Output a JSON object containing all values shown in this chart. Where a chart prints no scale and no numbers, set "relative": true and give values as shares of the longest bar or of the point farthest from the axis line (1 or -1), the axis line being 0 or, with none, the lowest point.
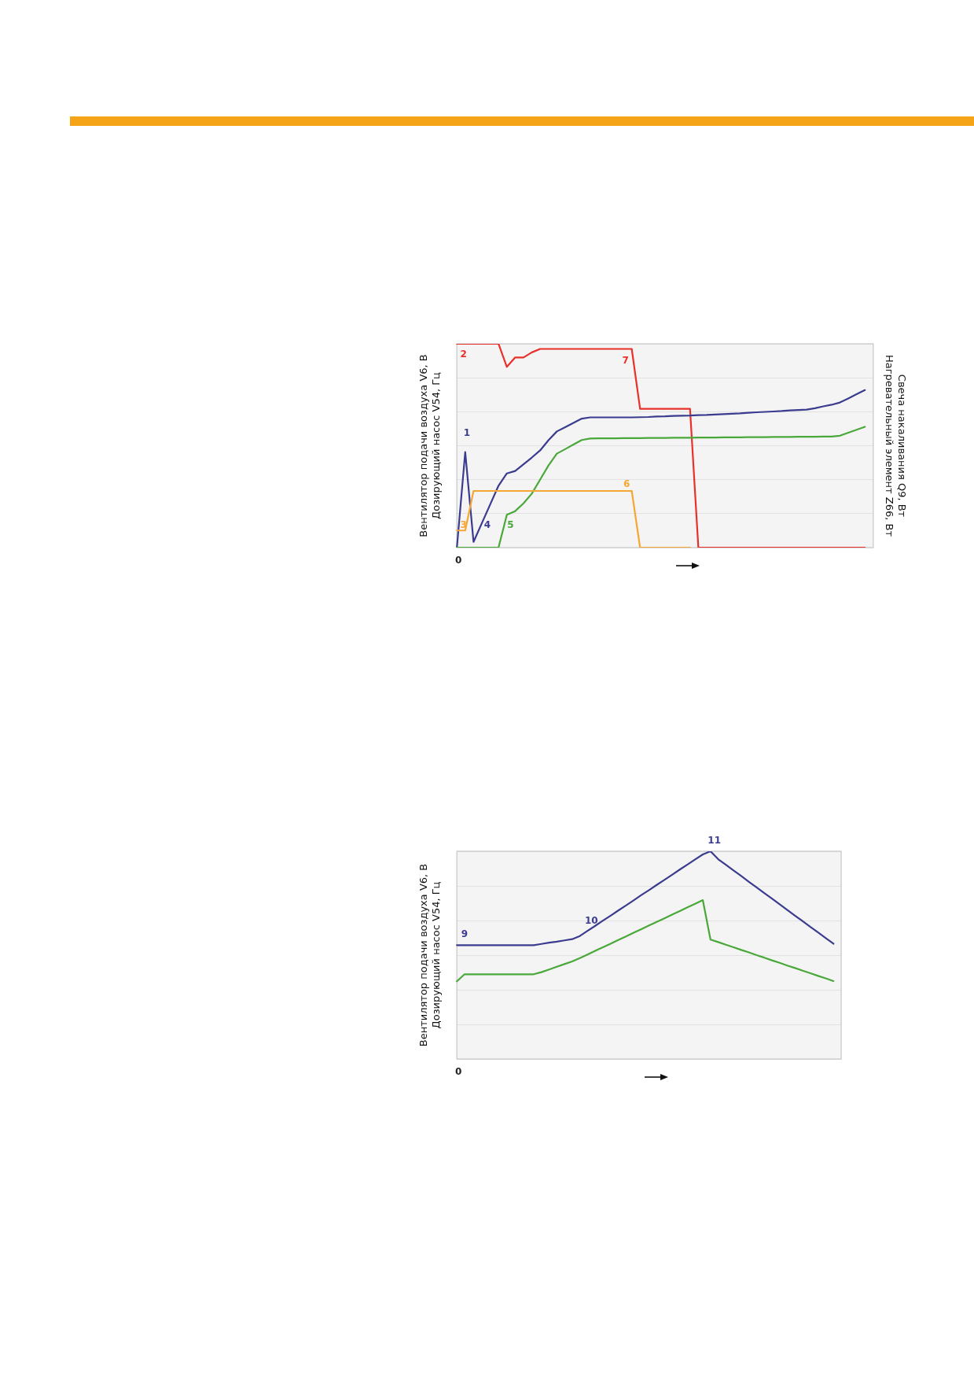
{
  "chart_data": [
    {
      "type": "line",
      "relative": true,
      "ylabel": "Вентилятор подачи воздуха V6, В\nДозирующий насос V54, Гц",
      "y2label": "Свеча накаливания Q9, Вт\nНагревательный элемент Z66, Вт",
      "grid": "y",
      "marker": "none",
      "categories": [
        null,
        null,
        null,
        null,
        null,
        null,
        null,
        null,
        null,
        null,
        null,
        null,
        null,
        null,
        null,
        null,
        null,
        null,
        null,
        null,
        null,
        null,
        null,
        null,
        null,
        null,
        null,
        null,
        null,
        null,
        null,
        null,
        null,
        null,
        null,
        null,
        null,
        null,
        null,
        null,
        null,
        null,
        null,
        null,
        null,
        null,
        null,
        null,
        null,
        null,
        null
      ],
      "series": [
        {
          "color": "#f5a733",
          "values": [
            0.084,
            0.084,
            0.278,
            0.278,
            0.278,
            0.278,
            0.278,
            0.278,
            0.278,
            0.278,
            0.278,
            0.278,
            0.278,
            0.278,
            0.278,
            0.278,
            0.278,
            0.278,
            0.278,
            0.278,
            0.278,
            0.278,
            0,
            0,
            0,
            0,
            0,
            0,
            0,
            null,
            null,
            null,
            null,
            null,
            null,
            null,
            null,
            null,
            null,
            null,
            null,
            null,
            null,
            null,
            null,
            null,
            null,
            null,
            null,
            null,
            null
          ]
        },
        {
          "color": "#4aa83a",
          "values": [
            0,
            0,
            0,
            0,
            0,
            0,
            0.161,
            0.179,
            0.217,
            0.265,
            0.334,
            0.403,
            0.461,
            0.483,
            0.506,
            0.528,
            0.535,
            0.536,
            0.536,
            0.536,
            0.537,
            0.537,
            0.537,
            0.538,
            0.538,
            0.538,
            0.539,
            0.539,
            0.539,
            0.54,
            0.54,
            0.54,
            0.541,
            0.541,
            0.541,
            0.542,
            0.542,
            0.542,
            0.543,
            0.543,
            0.543,
            0.544,
            0.544,
            0.544,
            0.545,
            0.545,
            0.549,
            0.564,
            0.578,
            0.593,
            null
          ]
        },
        {
          "color": "#3b3b8f",
          "values": [
            0,
            0.469,
            0.028,
            0.12,
            0.212,
            0.304,
            0.364,
            0.376,
            0.409,
            0.442,
            0.477,
            0.527,
            0.57,
            0.591,
            0.612,
            0.633,
            0.639,
            0.639,
            0.639,
            0.639,
            0.639,
            0.639,
            0.64,
            0.641,
            0.643,
            0.644,
            0.646,
            0.647,
            0.648,
            0.65,
            0.651,
            0.653,
            0.655,
            0.657,
            0.659,
            0.662,
            0.664,
            0.666,
            0.668,
            0.67,
            0.673,
            0.675,
            0.677,
            0.684,
            0.693,
            0.701,
            0.712,
            0.732,
            0.753,
            0.773,
            null
          ]
        },
        {
          "color": "#e8312a",
          "values": [
            1,
            1,
            1,
            1,
            1,
            1,
            0.887,
            0.933,
            0.933,
            0.958,
            0.975,
            0.975,
            0.975,
            0.975,
            0.975,
            0.975,
            0.975,
            0.975,
            0.975,
            0.975,
            0.975,
            0.975,
            0.681,
            0.681,
            0.681,
            0.681,
            0.681,
            0.681,
            0.681,
            0,
            0,
            0,
            0,
            0,
            0,
            0,
            0,
            0,
            0,
            0,
            0,
            0,
            0,
            0,
            0,
            0,
            0,
            0,
            0,
            0,
            null
          ]
        }
      ],
      "annotations": [
        "1",
        "2",
        "3",
        "4",
        "5",
        "6",
        "7",
        "0"
      ]
    },
    {
      "type": "line",
      "relative": true,
      "ylabel": "Вентилятор подачи воздуха V6, В\nДозирующий насос V54, Гц",
      "grid": "y",
      "marker": "none",
      "categories": [
        null,
        null,
        null,
        null,
        null,
        null,
        null,
        null,
        null,
        null,
        null,
        null,
        null,
        null,
        null,
        null,
        null,
        null,
        null,
        null,
        null,
        null,
        null,
        null,
        null,
        null,
        null,
        null,
        null,
        null,
        null,
        null,
        null,
        null,
        null,
        null,
        null,
        null,
        null,
        null,
        null,
        null,
        null,
        null,
        null,
        null,
        null,
        null,
        null,
        null,
        null
      ],
      "series": [
        {
          "color": "#4aa83a",
          "values": [
            0.374,
            0.408,
            0.408,
            0.408,
            0.408,
            0.408,
            0.408,
            0.408,
            0.408,
            0.408,
            0.408,
            0.418,
            0.431,
            0.444,
            0.457,
            0.47,
            0.486,
            0.503,
            0.521,
            0.538,
            0.555,
            0.573,
            0.59,
            0.608,
            0.625,
            0.643,
            0.66,
            0.677,
            0.695,
            0.712,
            0.73,
            0.747,
            0.765,
            0.575,
            0.563,
            0.55,
            0.538,
            0.525,
            0.513,
            0.5,
            0.488,
            0.475,
            0.463,
            0.45,
            0.438,
            0.425,
            0.413,
            0.4,
            0.388,
            0.375,
            null
          ]
        },
        {
          "color": "#3b3b8f",
          "values": [
            0.548,
            0.548,
            0.548,
            0.548,
            0.548,
            0.548,
            0.548,
            0.548,
            0.548,
            0.548,
            0.548,
            0.554,
            0.56,
            0.565,
            0.571,
            0.577,
            0.592,
            0.617,
            0.641,
            0.666,
            0.69,
            0.715,
            0.739,
            0.764,
            0.789,
            0.813,
            0.838,
            0.862,
            0.887,
            0.912,
            0.936,
            0.961,
            0.985,
            1,
            0.962,
            0.935,
            0.908,
            0.881,
            0.853,
            0.826,
            0.799,
            0.772,
            0.745,
            0.717,
            0.69,
            0.663,
            0.636,
            0.609,
            0.582,
            0.555,
            null
          ]
        }
      ],
      "annotations": [
        "9",
        "10",
        "11",
        "0"
      ]
    }
  ]
}
